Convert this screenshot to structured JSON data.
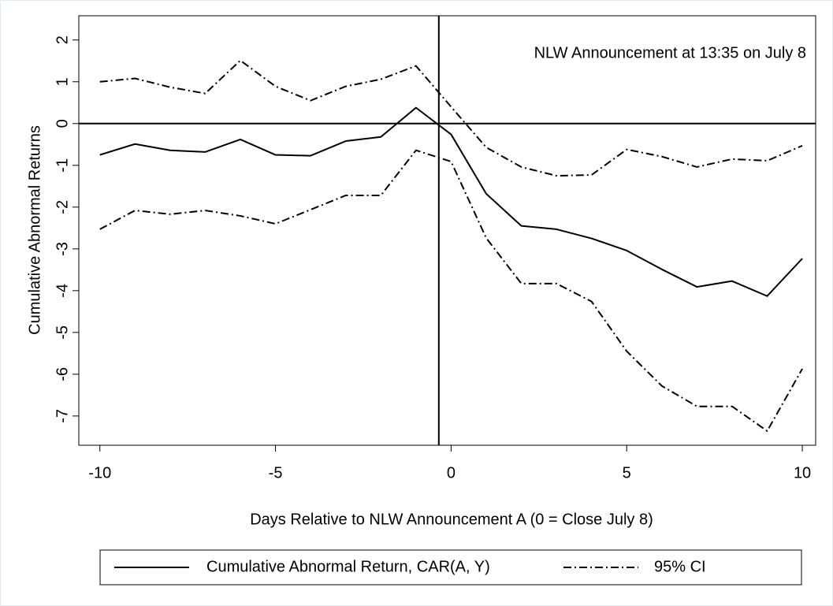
{
  "chart_data": {
    "type": "line",
    "xlabel": "Days Relative to NLW Announcement A (0 = Close July 8)",
    "ylabel": "Cumulative Abnormal Returns",
    "annotation": "NLW Announcement at 13:35 on July 8",
    "vline": -0.35,
    "hline": 0,
    "x": [
      -10,
      -9,
      -8,
      -7,
      -6,
      -5,
      -4,
      -3,
      -2,
      -1,
      0,
      1,
      2,
      3,
      4,
      5,
      6,
      7,
      8,
      9,
      10
    ],
    "series": [
      {
        "name": "Cumulative Abnormal Return, CAR(A, Y)",
        "color": "#000000",
        "values": [
          -0.75,
          -0.49,
          -0.64,
          -0.68,
          -0.38,
          -0.75,
          -0.77,
          -0.42,
          -0.32,
          0.38,
          -0.26,
          -1.68,
          -2.45,
          -2.53,
          -2.75,
          -3.04,
          -3.49,
          -3.91,
          -3.77,
          -4.13,
          -3.23
        ]
      },
      {
        "name": "95% CI",
        "color": "#000000",
        "upper": [
          1.0,
          1.08,
          0.87,
          0.72,
          1.51,
          0.89,
          0.55,
          0.89,
          1.06,
          1.38,
          0.4,
          -0.57,
          -1.04,
          -1.25,
          -1.23,
          -0.62,
          -0.79,
          -1.04,
          -0.85,
          -0.89,
          -0.53
        ],
        "lower": [
          -2.53,
          -2.08,
          -2.17,
          -2.08,
          -2.21,
          -2.4,
          -2.06,
          -1.72,
          -1.72,
          -0.64,
          -0.91,
          -2.74,
          -3.83,
          -3.83,
          -4.26,
          -5.45,
          -6.28,
          -6.77,
          -6.77,
          -7.36,
          -5.87
        ]
      }
    ],
    "xlim": [
      -10.6,
      10.38
    ],
    "ylim": [
      -7.7,
      2.58
    ],
    "xticks": [
      -10,
      -5,
      0,
      5,
      10
    ],
    "yticks": [
      -7,
      -6,
      -5,
      -4,
      -3,
      -2,
      -1,
      0,
      1,
      2
    ]
  }
}
